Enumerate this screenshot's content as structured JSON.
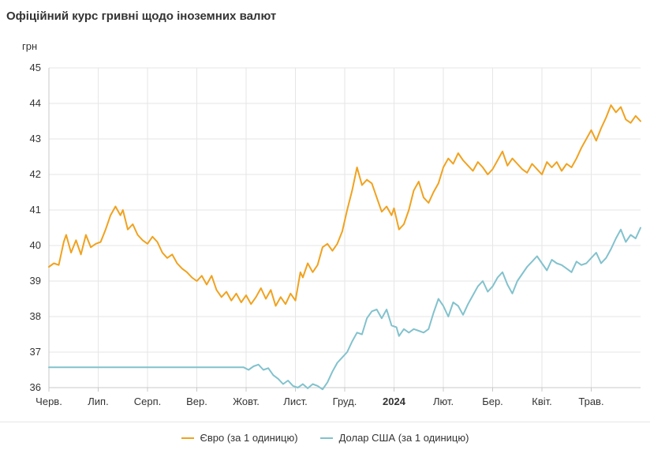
{
  "title": "Офіційний курс гривні щодо іноземних валют",
  "chart_data": {
    "type": "line",
    "title": "Офіційний курс гривні щодо іноземних валют",
    "ylabel": "грн",
    "ylim": [
      36,
      45
    ],
    "yticks": [
      36,
      37,
      38,
      39,
      40,
      41,
      42,
      43,
      44,
      45
    ],
    "xlim": [
      0,
      12
    ],
    "grid": true,
    "legend_position": "bottom",
    "xticks": [
      {
        "pos": 0,
        "label": "Черв.",
        "bold": false
      },
      {
        "pos": 1,
        "label": "Лип.",
        "bold": false
      },
      {
        "pos": 2,
        "label": "Серп.",
        "bold": false
      },
      {
        "pos": 3,
        "label": "Вер.",
        "bold": false
      },
      {
        "pos": 4,
        "label": "Жовт.",
        "bold": false
      },
      {
        "pos": 5,
        "label": "Лист.",
        "bold": false
      },
      {
        "pos": 6,
        "label": "Груд.",
        "bold": false
      },
      {
        "pos": 7,
        "label": "2024",
        "bold": true
      },
      {
        "pos": 8,
        "label": "Лют.",
        "bold": false
      },
      {
        "pos": 9,
        "label": "Бер.",
        "bold": false
      },
      {
        "pos": 10,
        "label": "Квіт.",
        "bold": false
      },
      {
        "pos": 11,
        "label": "Трав.",
        "bold": false
      }
    ],
    "series": [
      {
        "name": "Євро (за 1 одиницю)",
        "color": "#f0a21f",
        "points": [
          [
            0,
            39.4
          ],
          [
            0.1,
            39.5
          ],
          [
            0.2,
            39.45
          ],
          [
            0.3,
            40.1
          ],
          [
            0.35,
            40.3
          ],
          [
            0.45,
            39.8
          ],
          [
            0.55,
            40.15
          ],
          [
            0.65,
            39.75
          ],
          [
            0.75,
            40.3
          ],
          [
            0.85,
            39.95
          ],
          [
            0.95,
            40.05
          ],
          [
            1.05,
            40.1
          ],
          [
            1.15,
            40.45
          ],
          [
            1.25,
            40.85
          ],
          [
            1.35,
            41.1
          ],
          [
            1.45,
            40.85
          ],
          [
            1.5,
            41.0
          ],
          [
            1.6,
            40.45
          ],
          [
            1.7,
            40.6
          ],
          [
            1.8,
            40.3
          ],
          [
            1.9,
            40.15
          ],
          [
            2.0,
            40.05
          ],
          [
            2.1,
            40.25
          ],
          [
            2.2,
            40.1
          ],
          [
            2.3,
            39.8
          ],
          [
            2.4,
            39.65
          ],
          [
            2.5,
            39.75
          ],
          [
            2.6,
            39.5
          ],
          [
            2.7,
            39.35
          ],
          [
            2.8,
            39.25
          ],
          [
            2.9,
            39.1
          ],
          [
            3.0,
            39.0
          ],
          [
            3.1,
            39.15
          ],
          [
            3.2,
            38.9
          ],
          [
            3.3,
            39.15
          ],
          [
            3.4,
            38.75
          ],
          [
            3.5,
            38.55
          ],
          [
            3.6,
            38.7
          ],
          [
            3.7,
            38.45
          ],
          [
            3.8,
            38.65
          ],
          [
            3.9,
            38.4
          ],
          [
            4.0,
            38.6
          ],
          [
            4.1,
            38.35
          ],
          [
            4.2,
            38.55
          ],
          [
            4.3,
            38.8
          ],
          [
            4.4,
            38.5
          ],
          [
            4.5,
            38.75
          ],
          [
            4.6,
            38.3
          ],
          [
            4.7,
            38.55
          ],
          [
            4.8,
            38.35
          ],
          [
            4.9,
            38.65
          ],
          [
            5.0,
            38.45
          ],
          [
            5.1,
            39.25
          ],
          [
            5.15,
            39.1
          ],
          [
            5.25,
            39.5
          ],
          [
            5.35,
            39.25
          ],
          [
            5.45,
            39.45
          ],
          [
            5.55,
            39.95
          ],
          [
            5.65,
            40.05
          ],
          [
            5.75,
            39.85
          ],
          [
            5.85,
            40.05
          ],
          [
            5.95,
            40.4
          ],
          [
            6.05,
            41.0
          ],
          [
            6.15,
            41.55
          ],
          [
            6.25,
            42.2
          ],
          [
            6.35,
            41.7
          ],
          [
            6.45,
            41.85
          ],
          [
            6.55,
            41.75
          ],
          [
            6.65,
            41.35
          ],
          [
            6.75,
            40.95
          ],
          [
            6.85,
            41.1
          ],
          [
            6.95,
            40.85
          ],
          [
            7.0,
            41.05
          ],
          [
            7.1,
            40.45
          ],
          [
            7.2,
            40.6
          ],
          [
            7.3,
            41.0
          ],
          [
            7.4,
            41.55
          ],
          [
            7.5,
            41.8
          ],
          [
            7.6,
            41.35
          ],
          [
            7.7,
            41.2
          ],
          [
            7.8,
            41.5
          ],
          [
            7.9,
            41.75
          ],
          [
            8.0,
            42.2
          ],
          [
            8.1,
            42.45
          ],
          [
            8.2,
            42.3
          ],
          [
            8.3,
            42.6
          ],
          [
            8.4,
            42.4
          ],
          [
            8.5,
            42.25
          ],
          [
            8.6,
            42.1
          ],
          [
            8.7,
            42.35
          ],
          [
            8.8,
            42.2
          ],
          [
            8.9,
            42.0
          ],
          [
            9.0,
            42.15
          ],
          [
            9.1,
            42.4
          ],
          [
            9.2,
            42.65
          ],
          [
            9.3,
            42.25
          ],
          [
            9.4,
            42.45
          ],
          [
            9.5,
            42.3
          ],
          [
            9.6,
            42.15
          ],
          [
            9.7,
            42.05
          ],
          [
            9.8,
            42.3
          ],
          [
            9.9,
            42.15
          ],
          [
            10.0,
            42.0
          ],
          [
            10.1,
            42.35
          ],
          [
            10.2,
            42.2
          ],
          [
            10.3,
            42.35
          ],
          [
            10.4,
            42.1
          ],
          [
            10.5,
            42.3
          ],
          [
            10.6,
            42.2
          ],
          [
            10.7,
            42.45
          ],
          [
            10.8,
            42.75
          ],
          [
            10.9,
            43.0
          ],
          [
            11.0,
            43.25
          ],
          [
            11.1,
            42.95
          ],
          [
            11.2,
            43.3
          ],
          [
            11.3,
            43.6
          ],
          [
            11.4,
            43.95
          ],
          [
            11.5,
            43.75
          ],
          [
            11.6,
            43.9
          ],
          [
            11.7,
            43.55
          ],
          [
            11.8,
            43.45
          ],
          [
            11.9,
            43.65
          ],
          [
            12.0,
            43.5
          ]
        ]
      },
      {
        "name": "Долар США (за 1 одиницю)",
        "color": "#82c2cd",
        "points": [
          [
            0,
            36.57
          ],
          [
            1,
            36.57
          ],
          [
            2,
            36.57
          ],
          [
            3,
            36.57
          ],
          [
            3.95,
            36.57
          ],
          [
            4.05,
            36.5
          ],
          [
            4.15,
            36.6
          ],
          [
            4.25,
            36.65
          ],
          [
            4.35,
            36.5
          ],
          [
            4.45,
            36.55
          ],
          [
            4.55,
            36.35
          ],
          [
            4.65,
            36.25
          ],
          [
            4.75,
            36.1
          ],
          [
            4.85,
            36.2
          ],
          [
            4.95,
            36.05
          ],
          [
            5.05,
            36.0
          ],
          [
            5.15,
            36.1
          ],
          [
            5.25,
            35.98
          ],
          [
            5.35,
            36.1
          ],
          [
            5.45,
            36.05
          ],
          [
            5.55,
            35.95
          ],
          [
            5.65,
            36.15
          ],
          [
            5.75,
            36.45
          ],
          [
            5.85,
            36.7
          ],
          [
            5.95,
            36.85
          ],
          [
            6.05,
            37.0
          ],
          [
            6.15,
            37.3
          ],
          [
            6.25,
            37.55
          ],
          [
            6.35,
            37.5
          ],
          [
            6.45,
            37.95
          ],
          [
            6.55,
            38.15
          ],
          [
            6.65,
            38.2
          ],
          [
            6.75,
            37.95
          ],
          [
            6.85,
            38.2
          ],
          [
            6.95,
            37.75
          ],
          [
            7.05,
            37.7
          ],
          [
            7.1,
            37.45
          ],
          [
            7.2,
            37.65
          ],
          [
            7.3,
            37.55
          ],
          [
            7.4,
            37.65
          ],
          [
            7.5,
            37.6
          ],
          [
            7.6,
            37.55
          ],
          [
            7.7,
            37.65
          ],
          [
            7.8,
            38.1
          ],
          [
            7.9,
            38.5
          ],
          [
            8.0,
            38.3
          ],
          [
            8.1,
            38.0
          ],
          [
            8.2,
            38.4
          ],
          [
            8.3,
            38.3
          ],
          [
            8.4,
            38.05
          ],
          [
            8.5,
            38.35
          ],
          [
            8.6,
            38.6
          ],
          [
            8.7,
            38.85
          ],
          [
            8.8,
            39.0
          ],
          [
            8.9,
            38.7
          ],
          [
            9.0,
            38.85
          ],
          [
            9.1,
            39.1
          ],
          [
            9.2,
            39.25
          ],
          [
            9.3,
            38.9
          ],
          [
            9.4,
            38.65
          ],
          [
            9.5,
            39.0
          ],
          [
            9.6,
            39.2
          ],
          [
            9.7,
            39.4
          ],
          [
            9.8,
            39.55
          ],
          [
            9.9,
            39.7
          ],
          [
            10.0,
            39.5
          ],
          [
            10.1,
            39.3
          ],
          [
            10.2,
            39.6
          ],
          [
            10.3,
            39.5
          ],
          [
            10.4,
            39.45
          ],
          [
            10.5,
            39.35
          ],
          [
            10.6,
            39.25
          ],
          [
            10.7,
            39.55
          ],
          [
            10.8,
            39.45
          ],
          [
            10.9,
            39.5
          ],
          [
            11.0,
            39.65
          ],
          [
            11.1,
            39.8
          ],
          [
            11.2,
            39.5
          ],
          [
            11.3,
            39.65
          ],
          [
            11.4,
            39.9
          ],
          [
            11.5,
            40.2
          ],
          [
            11.6,
            40.45
          ],
          [
            11.7,
            40.1
          ],
          [
            11.8,
            40.3
          ],
          [
            11.9,
            40.2
          ],
          [
            12.0,
            40.5
          ]
        ]
      }
    ]
  }
}
